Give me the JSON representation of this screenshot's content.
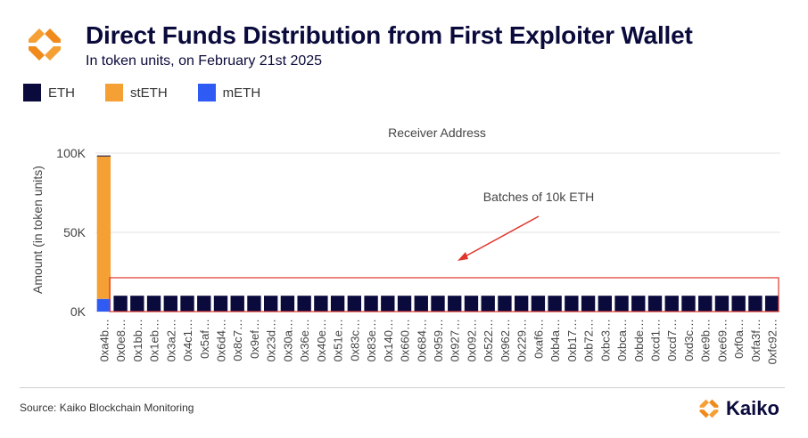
{
  "header": {
    "title": "Direct Funds Distribution from First Exploiter Wallet",
    "subtitle": "In token units, on February 21st 2025"
  },
  "legend": [
    {
      "label": "ETH",
      "color": "#0a0a3c"
    },
    {
      "label": "stETH",
      "color": "#f5a035"
    },
    {
      "label": "mETH",
      "color": "#2f5bf5"
    }
  ],
  "colors": {
    "eth": "#0a0a3c",
    "steth": "#f5a035",
    "meth": "#2f5bf5",
    "highlight": "#e0352b"
  },
  "chart_data": {
    "type": "bar",
    "stacked": true,
    "title": "Receiver Address",
    "xlabel": "",
    "ylabel": "Amount (in token units)",
    "ylim": [
      0,
      100000
    ],
    "yticks": [
      {
        "value": 0,
        "label": "0K"
      },
      {
        "value": 50000,
        "label": "50K"
      },
      {
        "value": 100000,
        "label": "100K"
      }
    ],
    "grid": true,
    "legend_position": "top-left",
    "categories": [
      "0xa4b…",
      "0x0e8…",
      "0x1bb…",
      "0x1eb…",
      "0x3a2…",
      "0x4c1…",
      "0x5af…",
      "0x6d4…",
      "0x8c7…",
      "0x9ef…",
      "0x23d…",
      "0x30a…",
      "0x36e…",
      "0x40e…",
      "0x51e…",
      "0x83c…",
      "0x83e…",
      "0x140…",
      "0x660…",
      "0x684…",
      "0x959…",
      "0x927…",
      "0x092…",
      "0x522…",
      "0x962…",
      "0x229…",
      "0xaf6…",
      "0xb4a…",
      "0xb17…",
      "0xb72…",
      "0xbc3…",
      "0xbca…",
      "0xbde…",
      "0xcd1…",
      "0xcd7…",
      "0xd3c…",
      "0xe9b…",
      "0xe69…",
      "0xf0a…",
      "0xfa3f…",
      "0xfc92…"
    ],
    "series": [
      {
        "name": "ETH",
        "values": [
          500,
          10000,
          10000,
          10000,
          10000,
          10000,
          10000,
          10000,
          10000,
          10000,
          10000,
          10000,
          10000,
          10000,
          10000,
          10000,
          10000,
          10000,
          10000,
          10000,
          10000,
          10000,
          10000,
          10000,
          10000,
          10000,
          10000,
          10000,
          10000,
          10000,
          10000,
          10000,
          10000,
          10000,
          10000,
          10000,
          10000,
          10000,
          10000,
          10000,
          10000
        ]
      },
      {
        "name": "stETH",
        "values": [
          90000,
          0,
          0,
          0,
          0,
          0,
          0,
          0,
          0,
          0,
          0,
          0,
          0,
          0,
          0,
          0,
          0,
          0,
          0,
          0,
          0,
          0,
          0,
          0,
          0,
          0,
          0,
          0,
          0,
          0,
          0,
          0,
          0,
          0,
          0,
          0,
          0,
          0,
          0,
          0,
          0
        ]
      },
      {
        "name": "mETH",
        "values": [
          8000,
          0,
          0,
          0,
          0,
          0,
          0,
          0,
          0,
          0,
          0,
          0,
          0,
          0,
          0,
          0,
          0,
          0,
          0,
          0,
          0,
          0,
          0,
          0,
          0,
          0,
          0,
          0,
          0,
          0,
          0,
          0,
          0,
          0,
          0,
          0,
          0,
          0,
          0,
          0,
          0
        ]
      }
    ],
    "annotations": [
      {
        "text": "Batches of 10k ETH"
      }
    ]
  },
  "footer": {
    "source": "Source: Kaiko Blockchain Monitoring",
    "brand": "Kaiko"
  }
}
